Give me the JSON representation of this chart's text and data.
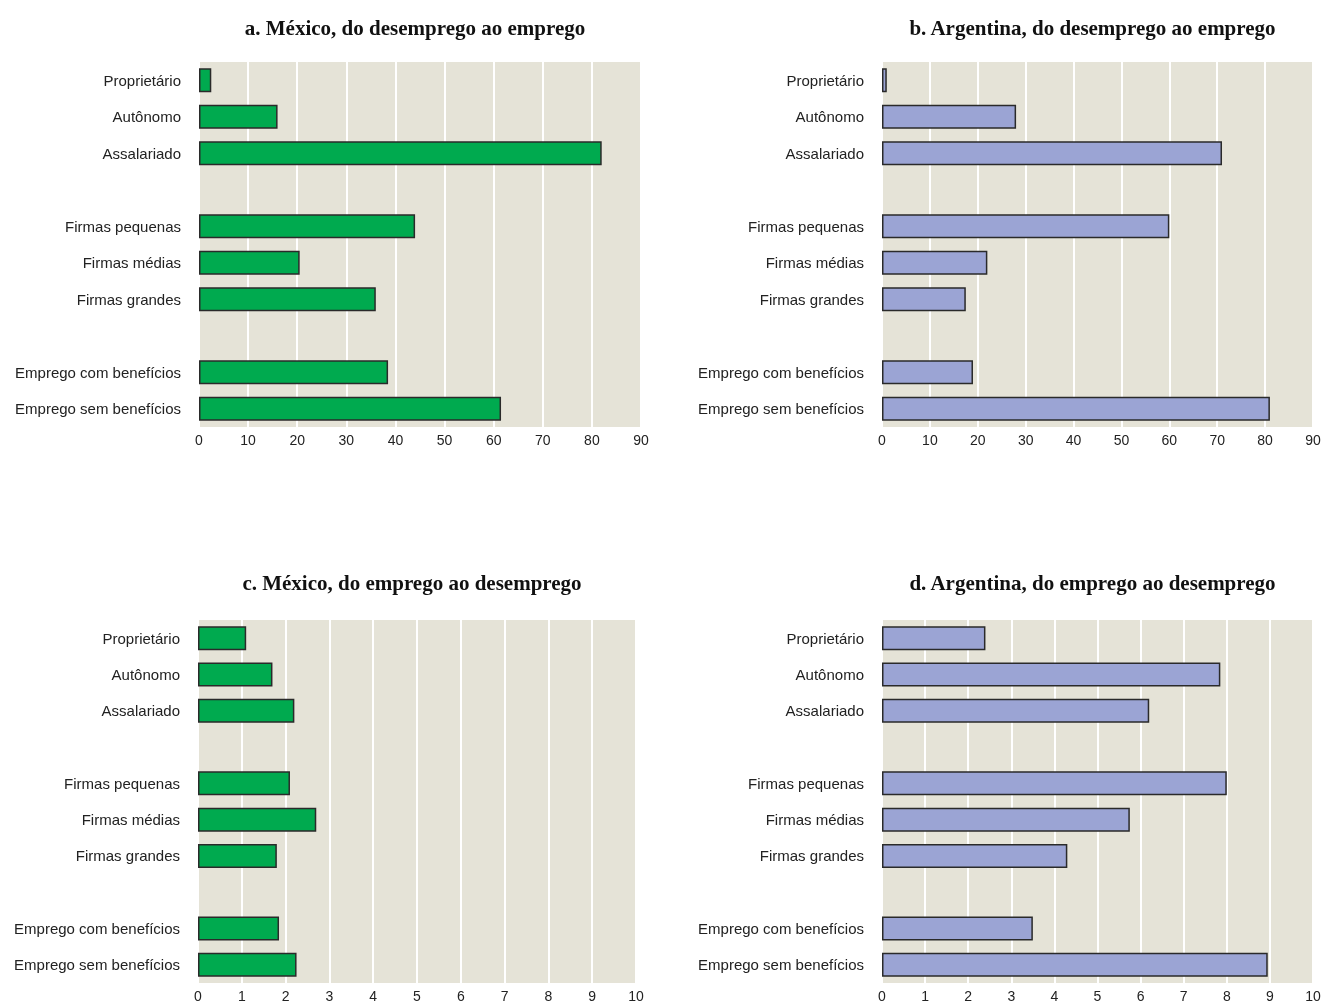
{
  "chart_data": [
    {
      "type": "bar",
      "orientation": "horizontal",
      "title": "a. México, do desemprego ao emprego",
      "categories": [
        "Proprietário",
        "Autônomo",
        "Assalariado",
        null,
        "Firmas pequenas",
        "Firmas médias",
        "Firmas grandes",
        null,
        "Emprego com benefícios",
        "Emprego sem benefícios"
      ],
      "values": [
        2.5,
        16,
        82,
        null,
        44,
        20.5,
        36,
        null,
        38.5,
        61.5
      ],
      "color": "#00aa4f",
      "xlim": [
        0,
        90
      ],
      "xticks": [
        0,
        10,
        20,
        30,
        40,
        50,
        60,
        70,
        80,
        90
      ],
      "grid": "x"
    },
    {
      "type": "bar",
      "orientation": "horizontal",
      "title": "b. Argentina, do desemprego ao emprego",
      "categories": [
        "Proprietário",
        "Autônomo",
        "Assalariado",
        null,
        "Firmas pequenas",
        "Firmas médias",
        "Firmas grandes",
        null,
        "Emprego com benefícios",
        "Emprego sem benefícios"
      ],
      "values": [
        1,
        28,
        71,
        null,
        60,
        22,
        17.5,
        null,
        19,
        81
      ],
      "color": "#9ba4d4",
      "xlim": [
        0,
        90
      ],
      "xticks": [
        0,
        10,
        20,
        30,
        40,
        50,
        60,
        70,
        80,
        90
      ],
      "grid": "x"
    },
    {
      "type": "bar",
      "orientation": "horizontal",
      "title": "c. México, do emprego ao desemprego",
      "categories": [
        "Proprietário",
        "Autônomo",
        "Assalariado",
        null,
        "Firmas pequenas",
        "Firmas médias",
        "Firmas grandes",
        null,
        "Emprego com benefícios",
        "Emprego sem benefícios"
      ],
      "values": [
        1.1,
        1.7,
        2.2,
        null,
        2.1,
        2.7,
        1.8,
        null,
        1.85,
        2.25
      ],
      "color": "#00aa4f",
      "xlim": [
        0,
        10
      ],
      "xticks": [
        0,
        1,
        2,
        3,
        4,
        5,
        6,
        7,
        8,
        9,
        10
      ],
      "grid": "x"
    },
    {
      "type": "bar",
      "orientation": "horizontal",
      "title": "d. Argentina, do emprego ao desemprego",
      "categories": [
        "Proprietário",
        "Autônomo",
        "Assalariado",
        null,
        "Firmas pequenas",
        "Firmas médias",
        "Firmas grandes",
        null,
        "Emprego com benefícios",
        "Emprego sem benefícios"
      ],
      "values": [
        2.4,
        7.85,
        6.2,
        null,
        8,
        5.75,
        4.3,
        null,
        3.5,
        8.95
      ],
      "color": "#9ba4d4",
      "xlim": [
        0,
        10
      ],
      "xticks": [
        0,
        1,
        2,
        3,
        4,
        5,
        6,
        7,
        8,
        9,
        10
      ],
      "grid": "x"
    }
  ]
}
